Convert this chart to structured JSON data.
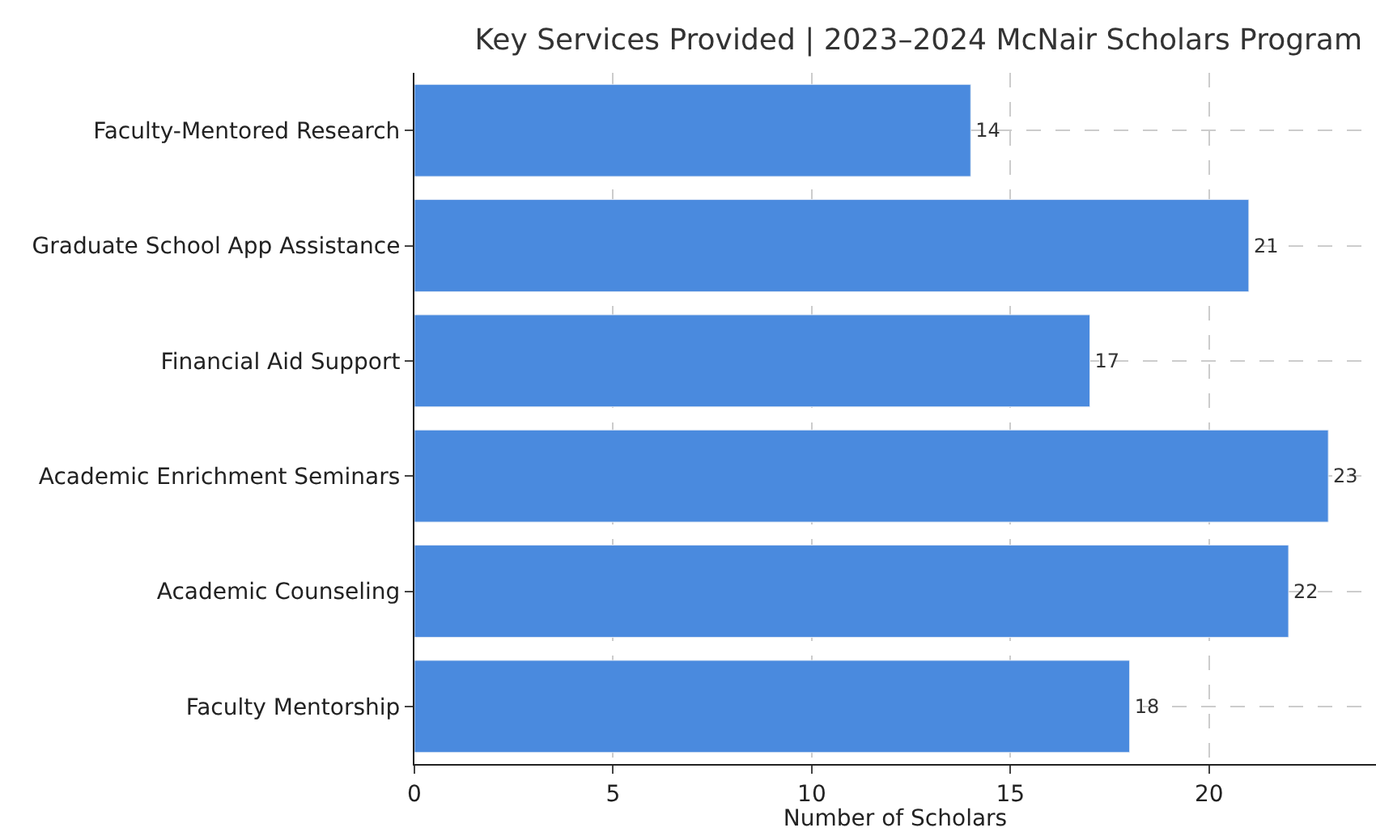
{
  "chart_data": {
    "type": "bar",
    "orientation": "horizontal",
    "title": "Key Services Provided | 2023–2024 McNair Scholars Program",
    "xlabel": "Number of Scholars",
    "categories": [
      "Faculty-Mentored Research",
      "Graduate School App Assistance",
      "Financial Aid Support",
      "Academic Enrichment Seminars",
      "Academic Counseling",
      "Faculty Mentorship"
    ],
    "values": [
      14,
      21,
      17,
      23,
      22,
      18
    ],
    "color": "#4a8ade",
    "xlim": [
      0,
      24.2
    ],
    "xticks": [
      0,
      5,
      10,
      15,
      20
    ],
    "grid": true,
    "data_labels": true
  }
}
